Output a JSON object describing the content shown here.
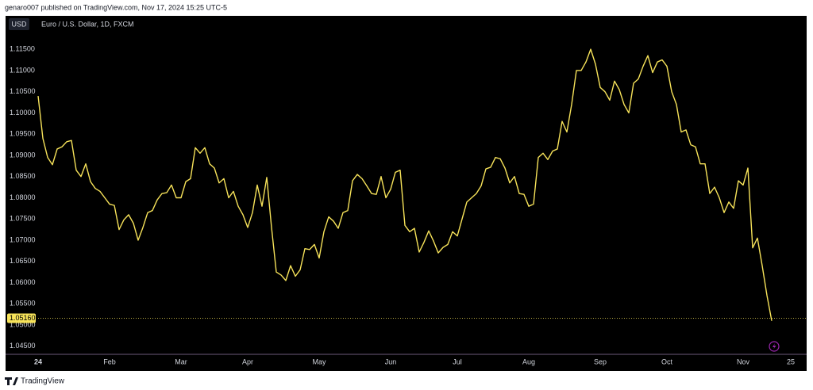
{
  "header": "genaro007 published on TradingView.com, Nov 17, 2024 15:25 UTC-5",
  "footer": "TradingView",
  "chart_data": {
    "type": "line",
    "currency": "USD",
    "title": "Euro / U.S. Dollar, 1D, FXCM",
    "color": "#f7e35a",
    "grid": false,
    "ylim": [
      1.0431,
      1.1225
    ],
    "yticks": [
      {
        "value": 1.045,
        "label": "1.04500"
      },
      {
        "value": 1.05,
        "label": "1.05000"
      },
      {
        "value": 1.055,
        "label": "1.05500"
      },
      {
        "value": 1.06,
        "label": "1.06000"
      },
      {
        "value": 1.065,
        "label": "1.06500"
      },
      {
        "value": 1.07,
        "label": "1.07000"
      },
      {
        "value": 1.075,
        "label": "1.07500"
      },
      {
        "value": 1.08,
        "label": "1.08000"
      },
      {
        "value": 1.085,
        "label": "1.08500"
      },
      {
        "value": 1.09,
        "label": "1.09000"
      },
      {
        "value": 1.095,
        "label": "1.09500"
      },
      {
        "value": 1.1,
        "label": "1.10000"
      },
      {
        "value": 1.105,
        "label": "1.10500"
      },
      {
        "value": 1.11,
        "label": "1.11000"
      },
      {
        "value": 1.115,
        "label": "1.11500"
      }
    ],
    "last_price": {
      "value": 1.0516,
      "label": "1.05160"
    },
    "categories": [
      "24",
      null,
      null,
      null,
      null,
      null,
      null,
      null,
      null,
      null,
      null,
      null,
      null,
      null,
      null,
      "Feb",
      null,
      null,
      null,
      null,
      null,
      null,
      null,
      null,
      null,
      null,
      null,
      null,
      null,
      null,
      "Mar",
      null,
      null,
      null,
      null,
      null,
      null,
      null,
      null,
      null,
      null,
      null,
      null,
      null,
      "Apr",
      null,
      null,
      null,
      null,
      null,
      null,
      null,
      null,
      null,
      null,
      null,
      null,
      null,
      null,
      "May",
      null,
      null,
      null,
      null,
      null,
      null,
      null,
      null,
      null,
      null,
      null,
      null,
      null,
      null,
      "Jun",
      null,
      null,
      null,
      null,
      null,
      null,
      null,
      null,
      null,
      null,
      null,
      null,
      null,
      "Jul",
      null,
      null,
      null,
      null,
      null,
      null,
      null,
      null,
      null,
      null,
      null,
      null,
      null,
      null,
      "Aug",
      null,
      null,
      null,
      null,
      null,
      null,
      null,
      null,
      null,
      null,
      null,
      null,
      null,
      null,
      "Sep",
      null,
      null,
      null,
      null,
      null,
      null,
      null,
      null,
      null,
      null,
      null,
      null,
      null,
      "Oct",
      null,
      null,
      null,
      null,
      null,
      null,
      null,
      null,
      null,
      null,
      null,
      null,
      null,
      null,
      null,
      "Nov",
      null,
      null,
      null,
      null,
      null,
      null,
      null,
      null,
      null,
      "25"
    ],
    "values": [
      1.104,
      1.094,
      1.0895,
      1.0878,
      1.0915,
      1.092,
      1.0932,
      1.0935,
      1.0865,
      1.085,
      1.088,
      1.0838,
      1.0822,
      1.0815,
      1.08,
      1.0785,
      1.0782,
      1.0725,
      1.0748,
      1.076,
      1.074,
      1.07,
      1.073,
      1.0765,
      1.077,
      1.0795,
      1.081,
      1.0812,
      1.083,
      1.08,
      1.08,
      1.0838,
      1.0845,
      1.0918,
      1.0905,
      1.0918,
      1.088,
      1.087,
      1.0835,
      1.0845,
      1.08,
      1.0815,
      1.078,
      1.076,
      1.073,
      1.0765,
      1.083,
      1.078,
      1.0848,
      1.073,
      1.0625,
      1.0618,
      1.0605,
      1.064,
      1.0615,
      1.063,
      1.068,
      1.0678,
      1.069,
      1.0658,
      1.072,
      1.0755,
      1.0745,
      1.0728,
      1.0765,
      1.077,
      1.084,
      1.0855,
      1.0845,
      1.0828,
      1.081,
      1.0808,
      1.085,
      1.08,
      1.082,
      1.086,
      1.0865,
      1.0735,
      1.072,
      1.0728,
      1.0672,
      1.0695,
      1.0722,
      1.0698,
      1.067,
      1.0683,
      1.069,
      1.072,
      1.071,
      1.075,
      1.079,
      1.08,
      1.081,
      1.0828,
      1.0868,
      1.0872,
      1.0895,
      1.0892,
      1.087,
      1.0835,
      1.085,
      1.081,
      1.0808,
      1.078,
      1.0785,
      1.0895,
      1.0905,
      1.089,
      1.091,
      1.0915,
      1.098,
      1.0955,
      1.102,
      1.11,
      1.11,
      1.112,
      1.115,
      1.1115,
      1.106,
      1.105,
      1.103,
      1.1075,
      1.1055,
      1.102,
      1.1,
      1.107,
      1.108,
      1.111,
      1.1135,
      1.1095,
      1.112,
      1.1125,
      1.111,
      1.105,
      1.102,
      1.0955,
      1.096,
      1.0925,
      1.092,
      1.088,
      1.088,
      1.081,
      1.0825,
      1.08,
      1.0765,
      1.079,
      1.0775,
      1.084,
      1.083,
      1.087,
      1.0682,
      1.0705,
      1.064,
      1.057,
      1.051,
      null,
      null,
      null,
      null
    ]
  }
}
